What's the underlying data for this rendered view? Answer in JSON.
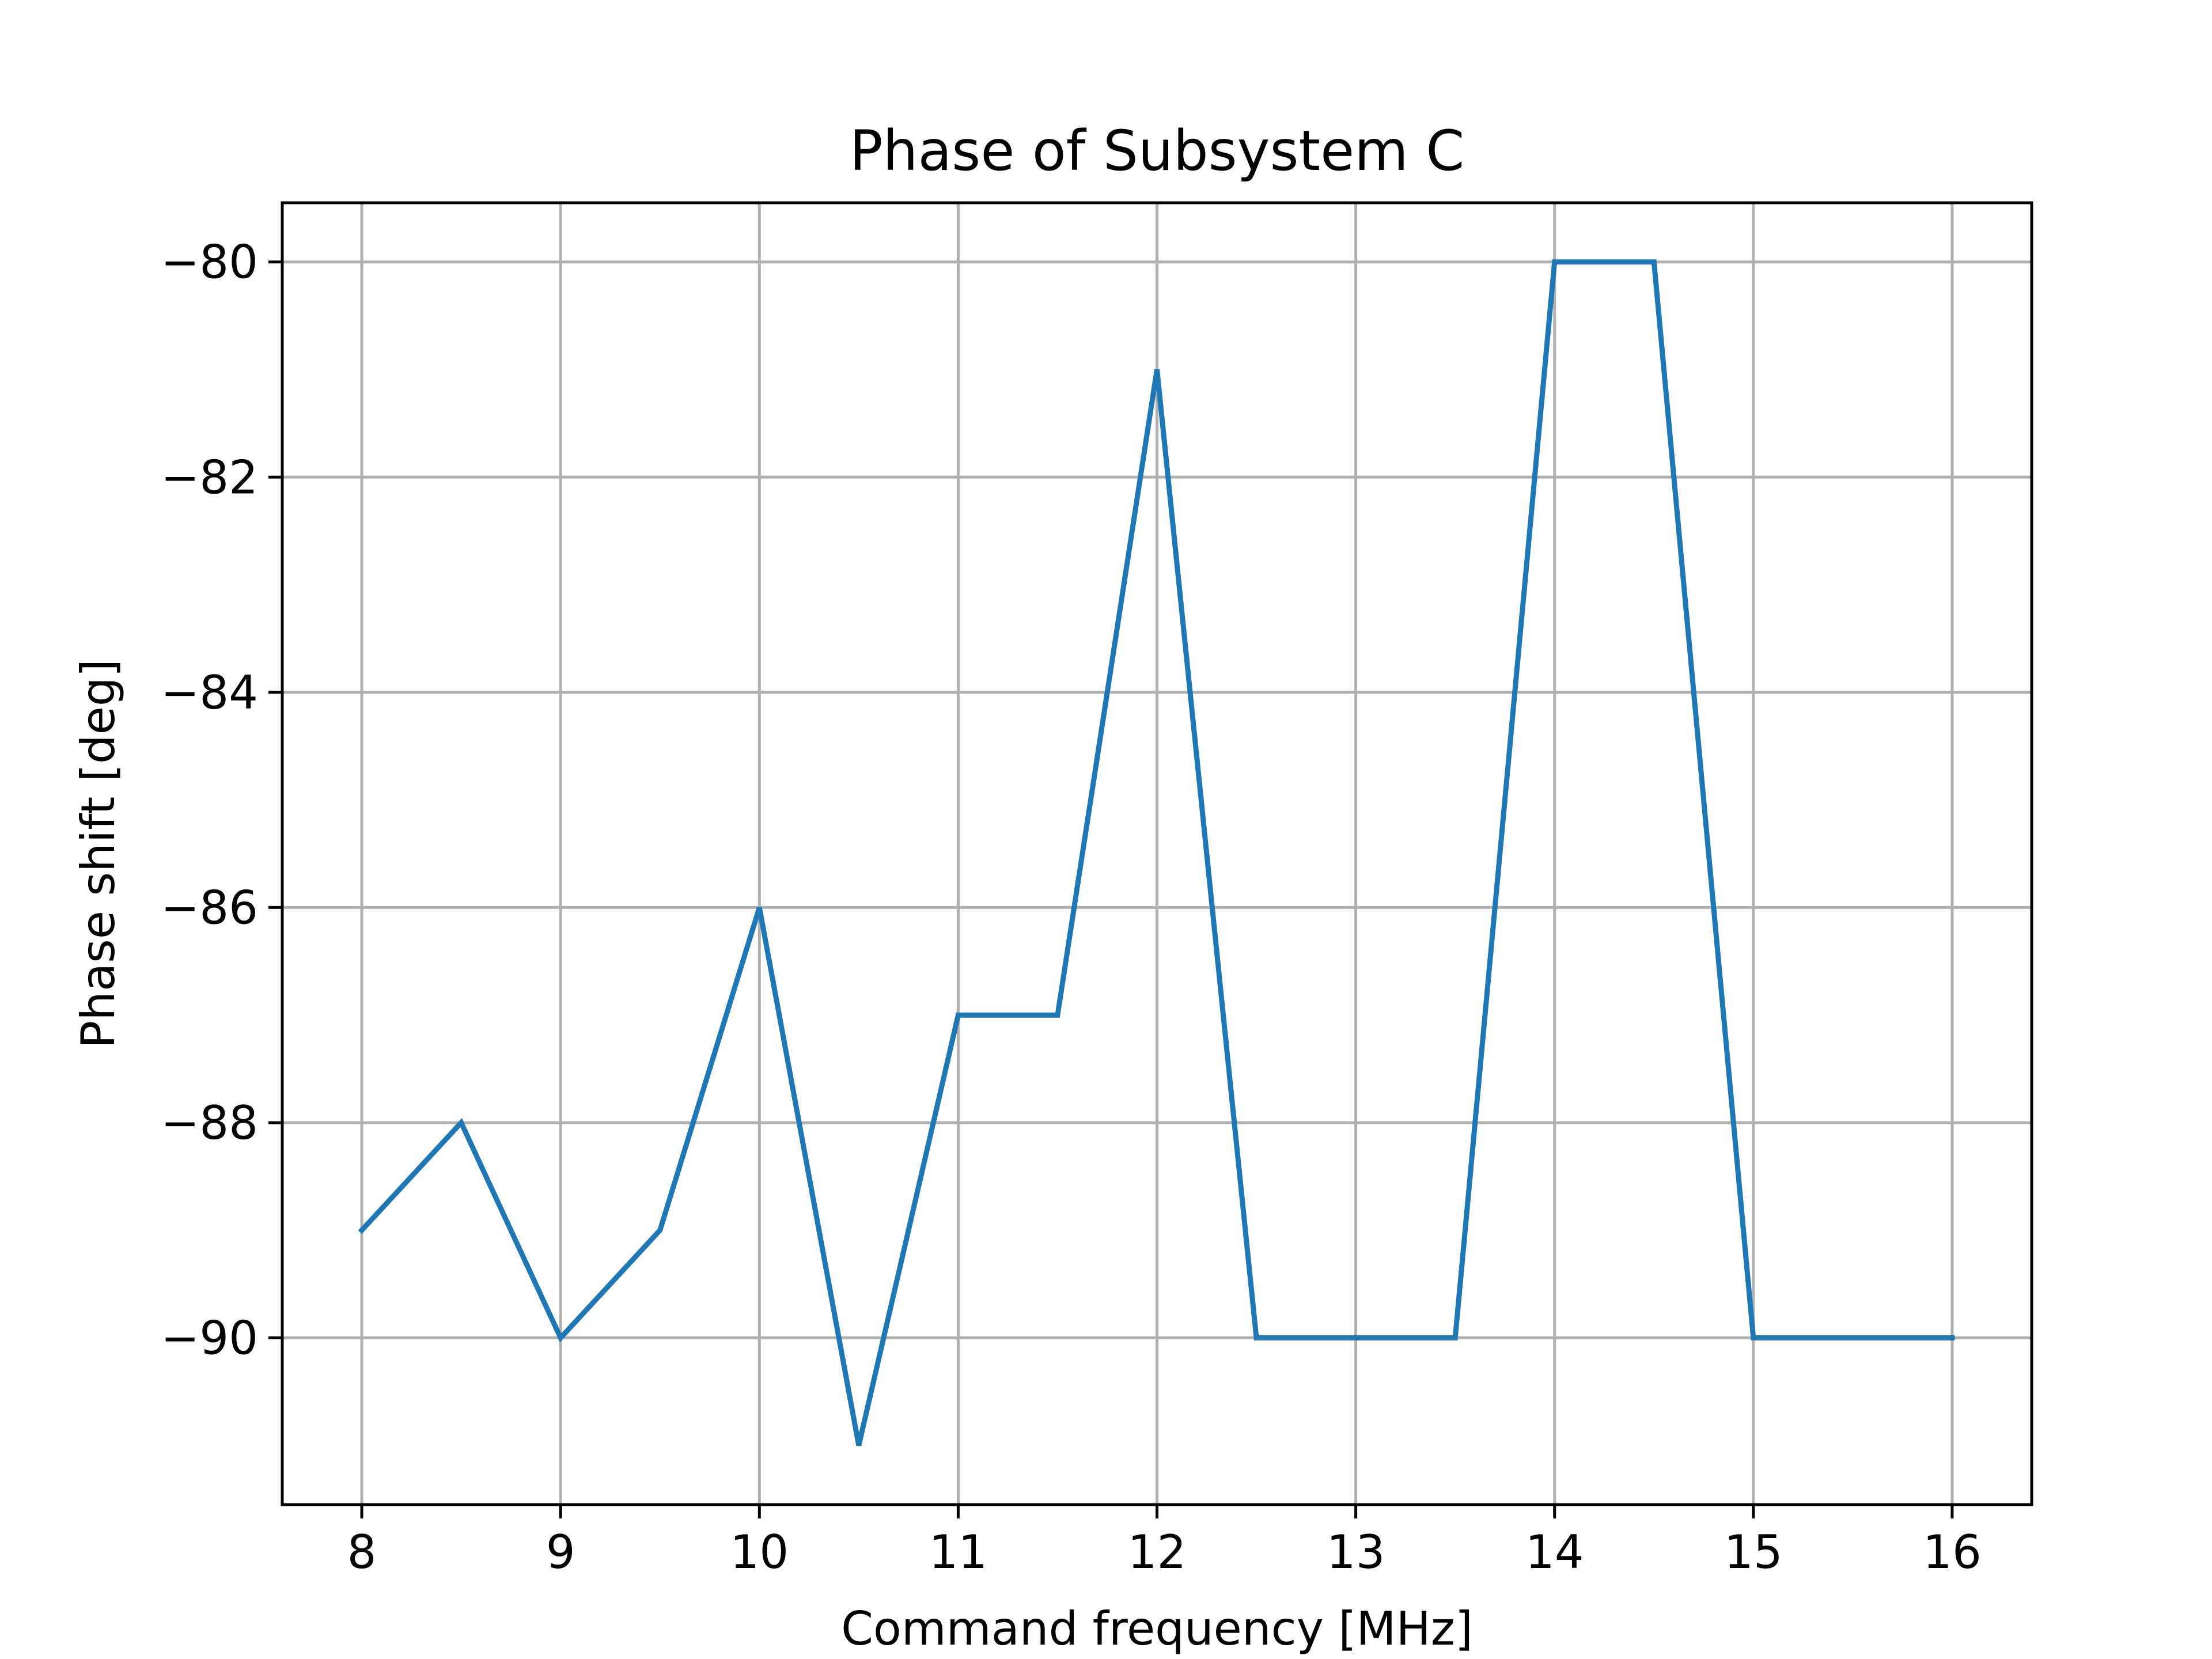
{
  "chart_data": {
    "type": "line",
    "title": "Phase of Subsystem C",
    "xlabel": "Command frequency [MHz]",
    "ylabel": "Phase shift [deg]",
    "xlim": [
      7.6,
      16.4
    ],
    "ylim": [
      -91.55,
      -79.45
    ],
    "x_ticks": [
      8,
      9,
      10,
      11,
      12,
      13,
      14,
      15,
      16
    ],
    "y_ticks": [
      -80,
      -82,
      -84,
      -86,
      -88,
      -90
    ],
    "y_tick_labels": [
      "−80",
      "−82",
      "−84",
      "−86",
      "−88",
      "−90"
    ],
    "grid": true,
    "series": [
      {
        "color": "#1f77b4",
        "x": [
          8,
          8.5,
          9,
          9.5,
          10,
          10.5,
          11,
          11.5,
          12,
          12.5,
          13,
          13.5,
          14,
          14.5,
          15,
          15.5,
          16
        ],
        "y": [
          -89,
          -88,
          -90,
          -89,
          -86,
          -91,
          -87,
          -87,
          -81,
          -90,
          -90,
          -90,
          -80,
          -80,
          -90,
          -90,
          -90
        ]
      }
    ]
  }
}
